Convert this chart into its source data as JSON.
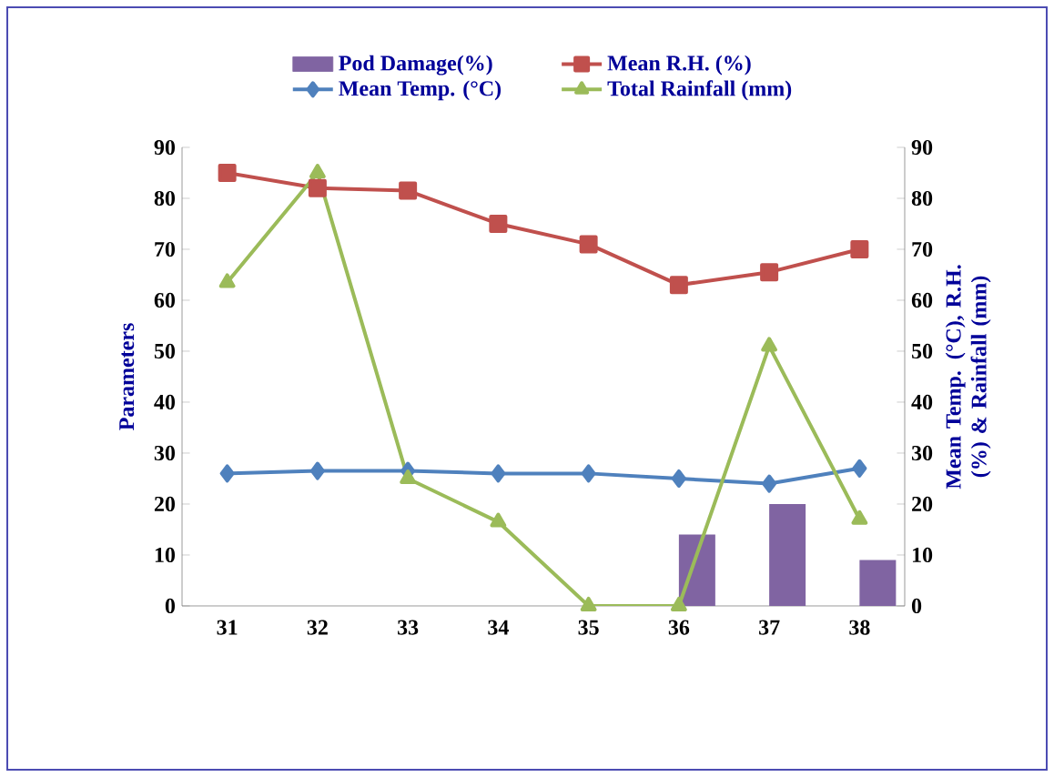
{
  "chart_data": {
    "type": "line",
    "categories": [
      "31",
      "32",
      "33",
      "34",
      "35",
      "36",
      "37",
      "38"
    ],
    "ylabel": "Parameters",
    "y2label": "Mean Temp. (°C), R.H. (%) & Rainfall (mm)",
    "ylim": [
      0,
      90
    ],
    "yticks": [
      0,
      10,
      20,
      30,
      40,
      50,
      60,
      70,
      80,
      90
    ],
    "y2lim": [
      0,
      90
    ],
    "y2ticks": [
      0,
      10,
      20,
      30,
      40,
      50,
      60,
      70,
      80,
      90
    ],
    "legend": "top",
    "grid": false,
    "series": [
      {
        "name": "Pod Damage(%)",
        "type": "bar",
        "color": "#8064a2",
        "values": [
          null,
          null,
          null,
          null,
          null,
          14,
          20,
          9
        ]
      },
      {
        "name": "Mean R.H. (%)",
        "axis": "y2",
        "marker": "square",
        "color": "#c0504d",
        "values": [
          85,
          82,
          81.5,
          75,
          71,
          63,
          65.5,
          70
        ]
      },
      {
        "name": "Mean Temp. (°C)",
        "axis": "y2",
        "marker": "diamond",
        "color": "#4f81bd",
        "values": [
          26,
          26.5,
          26.5,
          26,
          26,
          25,
          24,
          27
        ]
      },
      {
        "name": "Total Rainfall (mm)",
        "axis": "y2",
        "marker": "triangle",
        "color": "#9bbb59",
        "values": [
          63.5,
          85,
          25,
          16.5,
          0,
          0,
          51,
          17
        ]
      }
    ]
  }
}
